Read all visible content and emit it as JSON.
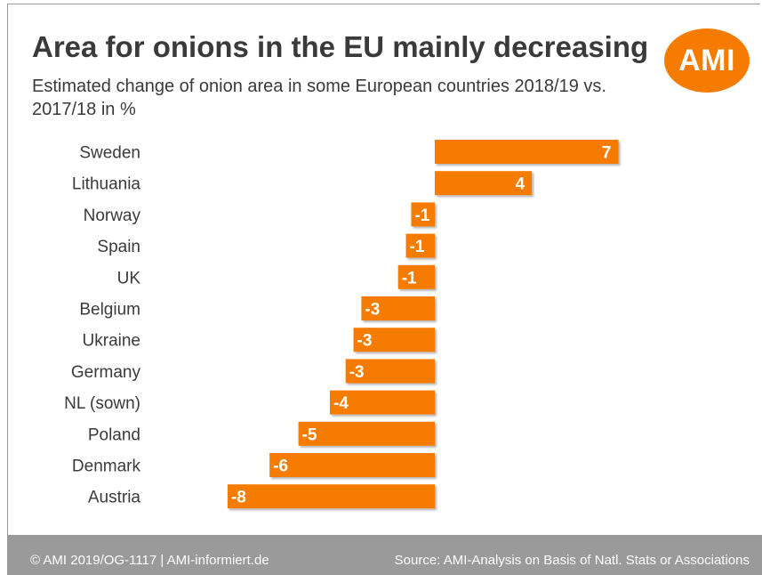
{
  "header": {
    "title": "Area for onions in the EU mainly decreasing",
    "subtitle": "Estimated change of onion area in some European countries 2018/19 vs. 2017/18 in %",
    "logo_text": "AMI"
  },
  "colors": {
    "bar": "#f57c00",
    "text": "#3a3a3a",
    "footer_bg": "#9a9a9a"
  },
  "footer": {
    "left": "© AMI 2019/OG-1117 | AMI-informiert.de",
    "right": "Source: AMI-Analysis on Basis of Natl. Stats or Associations"
  },
  "chart_data": {
    "type": "bar",
    "orientation": "horizontal",
    "title": "Area for onions in the EU mainly decreasing",
    "subtitle": "Estimated change of onion area in some European countries 2018/19 vs. 2017/18 in %",
    "categories": [
      "Sweden",
      "Lithuania",
      "Norway",
      "Spain",
      "UK",
      "Belgium",
      "Ukraine",
      "Germany",
      "NL (sown)",
      "Poland",
      "Denmark",
      "Austria"
    ],
    "values": [
      7.0,
      3.7,
      -0.9,
      -1.1,
      -1.4,
      -2.8,
      -3.1,
      -3.4,
      -4.0,
      -5.2,
      -6.3,
      -7.9
    ],
    "data_labels": [
      "7",
      "4",
      "-1",
      "-1",
      "-1",
      "-3",
      "-3",
      "-3",
      "-4",
      "-5",
      "-6",
      "-8"
    ],
    "xlim": [
      -8,
      7
    ],
    "grid": false,
    "legend": "none",
    "xlabel": "",
    "ylabel": ""
  }
}
